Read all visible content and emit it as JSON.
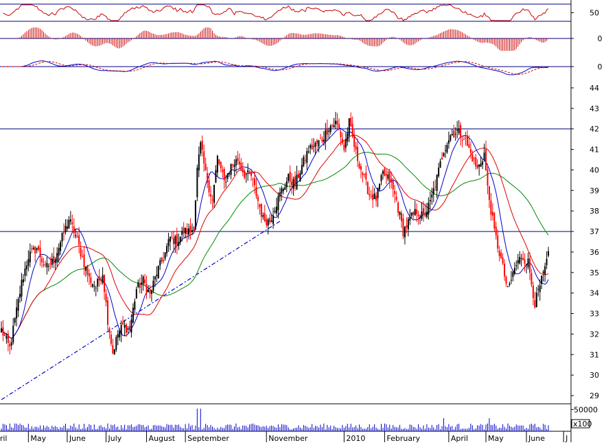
{
  "chart_data": {
    "type": "candlestick",
    "colors": {
      "up": "#000000",
      "down": "#ff0000",
      "ma_short": "#0000cc",
      "ma_mid": "#dd0000",
      "ma_long": "#008800",
      "trendline": "#0000cc",
      "hline": "#000080",
      "volume": "#0000cc",
      "osc": "#cc0000"
    },
    "months": [
      "April",
      "May",
      "June",
      "July",
      "August",
      "September",
      "November",
      "2010",
      "February",
      "April",
      "May",
      "June",
      "J"
    ],
    "y_ticks": [
      29,
      30,
      31,
      32,
      33,
      34,
      35,
      36,
      37,
      38,
      39,
      40,
      41,
      42,
      43,
      44
    ],
    "ylim": [
      28.6,
      44.4
    ],
    "horizontal_lines": [
      42,
      37
    ],
    "trendline": {
      "from": [
        0,
        28.8
      ],
      "to": [
        165,
        37.5
      ]
    },
    "key_prices": [
      {
        "x": 0,
        "p": 32.2
      },
      {
        "x": 5,
        "p": 31.3
      },
      {
        "x": 12,
        "p": 34.5
      },
      {
        "x": 16,
        "p": 35.8
      },
      {
        "x": 21,
        "p": 36.2
      },
      {
        "x": 26,
        "p": 35.2
      },
      {
        "x": 31,
        "p": 35.6
      },
      {
        "x": 36,
        "p": 36.7
      },
      {
        "x": 40,
        "p": 37.6
      },
      {
        "x": 44,
        "p": 36.8
      },
      {
        "x": 48,
        "p": 35.7
      },
      {
        "x": 52,
        "p": 34.7
      },
      {
        "x": 56,
        "p": 34.3
      },
      {
        "x": 60,
        "p": 35.0
      },
      {
        "x": 63,
        "p": 32.7
      },
      {
        "x": 66,
        "p": 31.1
      },
      {
        "x": 69,
        "p": 32.0
      },
      {
        "x": 72,
        "p": 32.4
      },
      {
        "x": 76,
        "p": 32.2
      },
      {
        "x": 80,
        "p": 34.2
      },
      {
        "x": 84,
        "p": 34.6
      },
      {
        "x": 88,
        "p": 33.9
      },
      {
        "x": 92,
        "p": 35.0
      },
      {
        "x": 96,
        "p": 35.7
      },
      {
        "x": 100,
        "p": 36.7
      },
      {
        "x": 104,
        "p": 36.5
      },
      {
        "x": 108,
        "p": 37.0
      },
      {
        "x": 112,
        "p": 37.0
      },
      {
        "x": 114,
        "p": 37.2
      },
      {
        "x": 116,
        "p": 40.0
      },
      {
        "x": 118,
        "p": 41.2
      },
      {
        "x": 121,
        "p": 39.8
      },
      {
        "x": 125,
        "p": 38.5
      },
      {
        "x": 128,
        "p": 40.6
      },
      {
        "x": 132,
        "p": 39.4
      },
      {
        "x": 136,
        "p": 40.2
      },
      {
        "x": 140,
        "p": 40.5
      },
      {
        "x": 144,
        "p": 39.8
      },
      {
        "x": 148,
        "p": 39.7
      },
      {
        "x": 152,
        "p": 38.5
      },
      {
        "x": 155,
        "p": 37.6
      },
      {
        "x": 159,
        "p": 37.5
      },
      {
        "x": 162,
        "p": 38.2
      },
      {
        "x": 166,
        "p": 39.0
      },
      {
        "x": 170,
        "p": 39.6
      },
      {
        "x": 174,
        "p": 39.3
      },
      {
        "x": 178,
        "p": 40.2
      },
      {
        "x": 182,
        "p": 41.0
      },
      {
        "x": 186,
        "p": 41.2
      },
      {
        "x": 190,
        "p": 41.5
      },
      {
        "x": 194,
        "p": 42.1
      },
      {
        "x": 198,
        "p": 42.3
      },
      {
        "x": 200,
        "p": 42.0
      },
      {
        "x": 203,
        "p": 41.0
      },
      {
        "x": 206,
        "p": 42.3
      },
      {
        "x": 210,
        "p": 40.8
      },
      {
        "x": 214,
        "p": 39.8
      },
      {
        "x": 218,
        "p": 38.8
      },
      {
        "x": 222,
        "p": 38.6
      },
      {
        "x": 226,
        "p": 39.8
      },
      {
        "x": 230,
        "p": 39.5
      },
      {
        "x": 234,
        "p": 38.5
      },
      {
        "x": 238,
        "p": 37.0
      },
      {
        "x": 242,
        "p": 37.6
      },
      {
        "x": 246,
        "p": 38.0
      },
      {
        "x": 250,
        "p": 37.7
      },
      {
        "x": 254,
        "p": 38.4
      },
      {
        "x": 258,
        "p": 39.6
      },
      {
        "x": 262,
        "p": 41.0
      },
      {
        "x": 266,
        "p": 41.7
      },
      {
        "x": 270,
        "p": 41.9
      },
      {
        "x": 274,
        "p": 41.6
      },
      {
        "x": 278,
        "p": 40.8
      },
      {
        "x": 282,
        "p": 40.0
      },
      {
        "x": 286,
        "p": 40.8
      },
      {
        "x": 288,
        "p": 39.1
      },
      {
        "x": 292,
        "p": 37.0
      },
      {
        "x": 296,
        "p": 35.6
      },
      {
        "x": 300,
        "p": 34.1
      },
      {
        "x": 304,
        "p": 35.2
      },
      {
        "x": 308,
        "p": 35.8
      },
      {
        "x": 312,
        "p": 35.5
      },
      {
        "x": 316,
        "p": 33.5
      },
      {
        "x": 320,
        "p": 34.6
      },
      {
        "x": 324,
        "p": 35.8
      }
    ],
    "volume_axis": {
      "tick": "50000",
      "unit": "x100",
      "ymax": 60000
    },
    "panels": [
      {
        "name": "rsi",
        "tick": "50",
        "range": [
          0,
          100
        ],
        "ref_level": 50
      },
      {
        "name": "histogram",
        "tick": "0"
      },
      {
        "name": "macd",
        "tick": "0"
      }
    ]
  }
}
